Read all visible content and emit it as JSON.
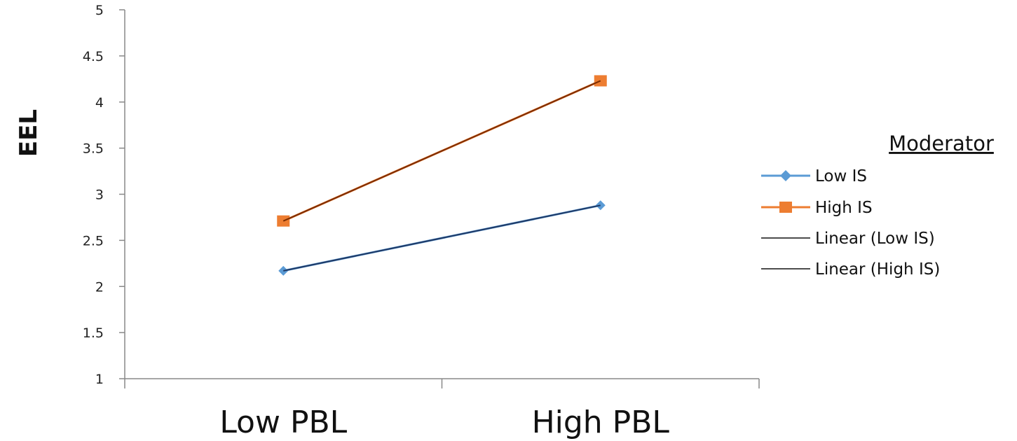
{
  "chart_data": {
    "type": "line",
    "categories": [
      "Low PBL",
      "High PBL"
    ],
    "ylabel": "EEL",
    "xlabel": "",
    "ylim": [
      1,
      5
    ],
    "yticks": [
      "1",
      "1.5",
      "2",
      "2.5",
      "3",
      "3.5",
      "4",
      "4.5",
      "5"
    ],
    "grid": false,
    "legend_position": "right",
    "series": [
      {
        "name": "Low IS",
        "values": [
          2.17,
          2.88
        ],
        "color": "#5b9bd5",
        "marker": "diamond"
      },
      {
        "name": "High IS",
        "values": [
          2.71,
          4.23
        ],
        "color": "#ed7d31",
        "marker": "square"
      }
    ],
    "trendlines": [
      {
        "name": "Linear (Low IS)",
        "values": [
          2.17,
          2.88
        ],
        "color": "#1f3864"
      },
      {
        "name": "Linear (High IS)",
        "values": [
          2.71,
          4.23
        ],
        "color": "#7b2c00"
      }
    ],
    "legend": {
      "title": "Moderator",
      "entries": [
        "Low IS",
        "High IS",
        "Linear (Low IS)",
        "Linear (High IS)"
      ]
    }
  }
}
